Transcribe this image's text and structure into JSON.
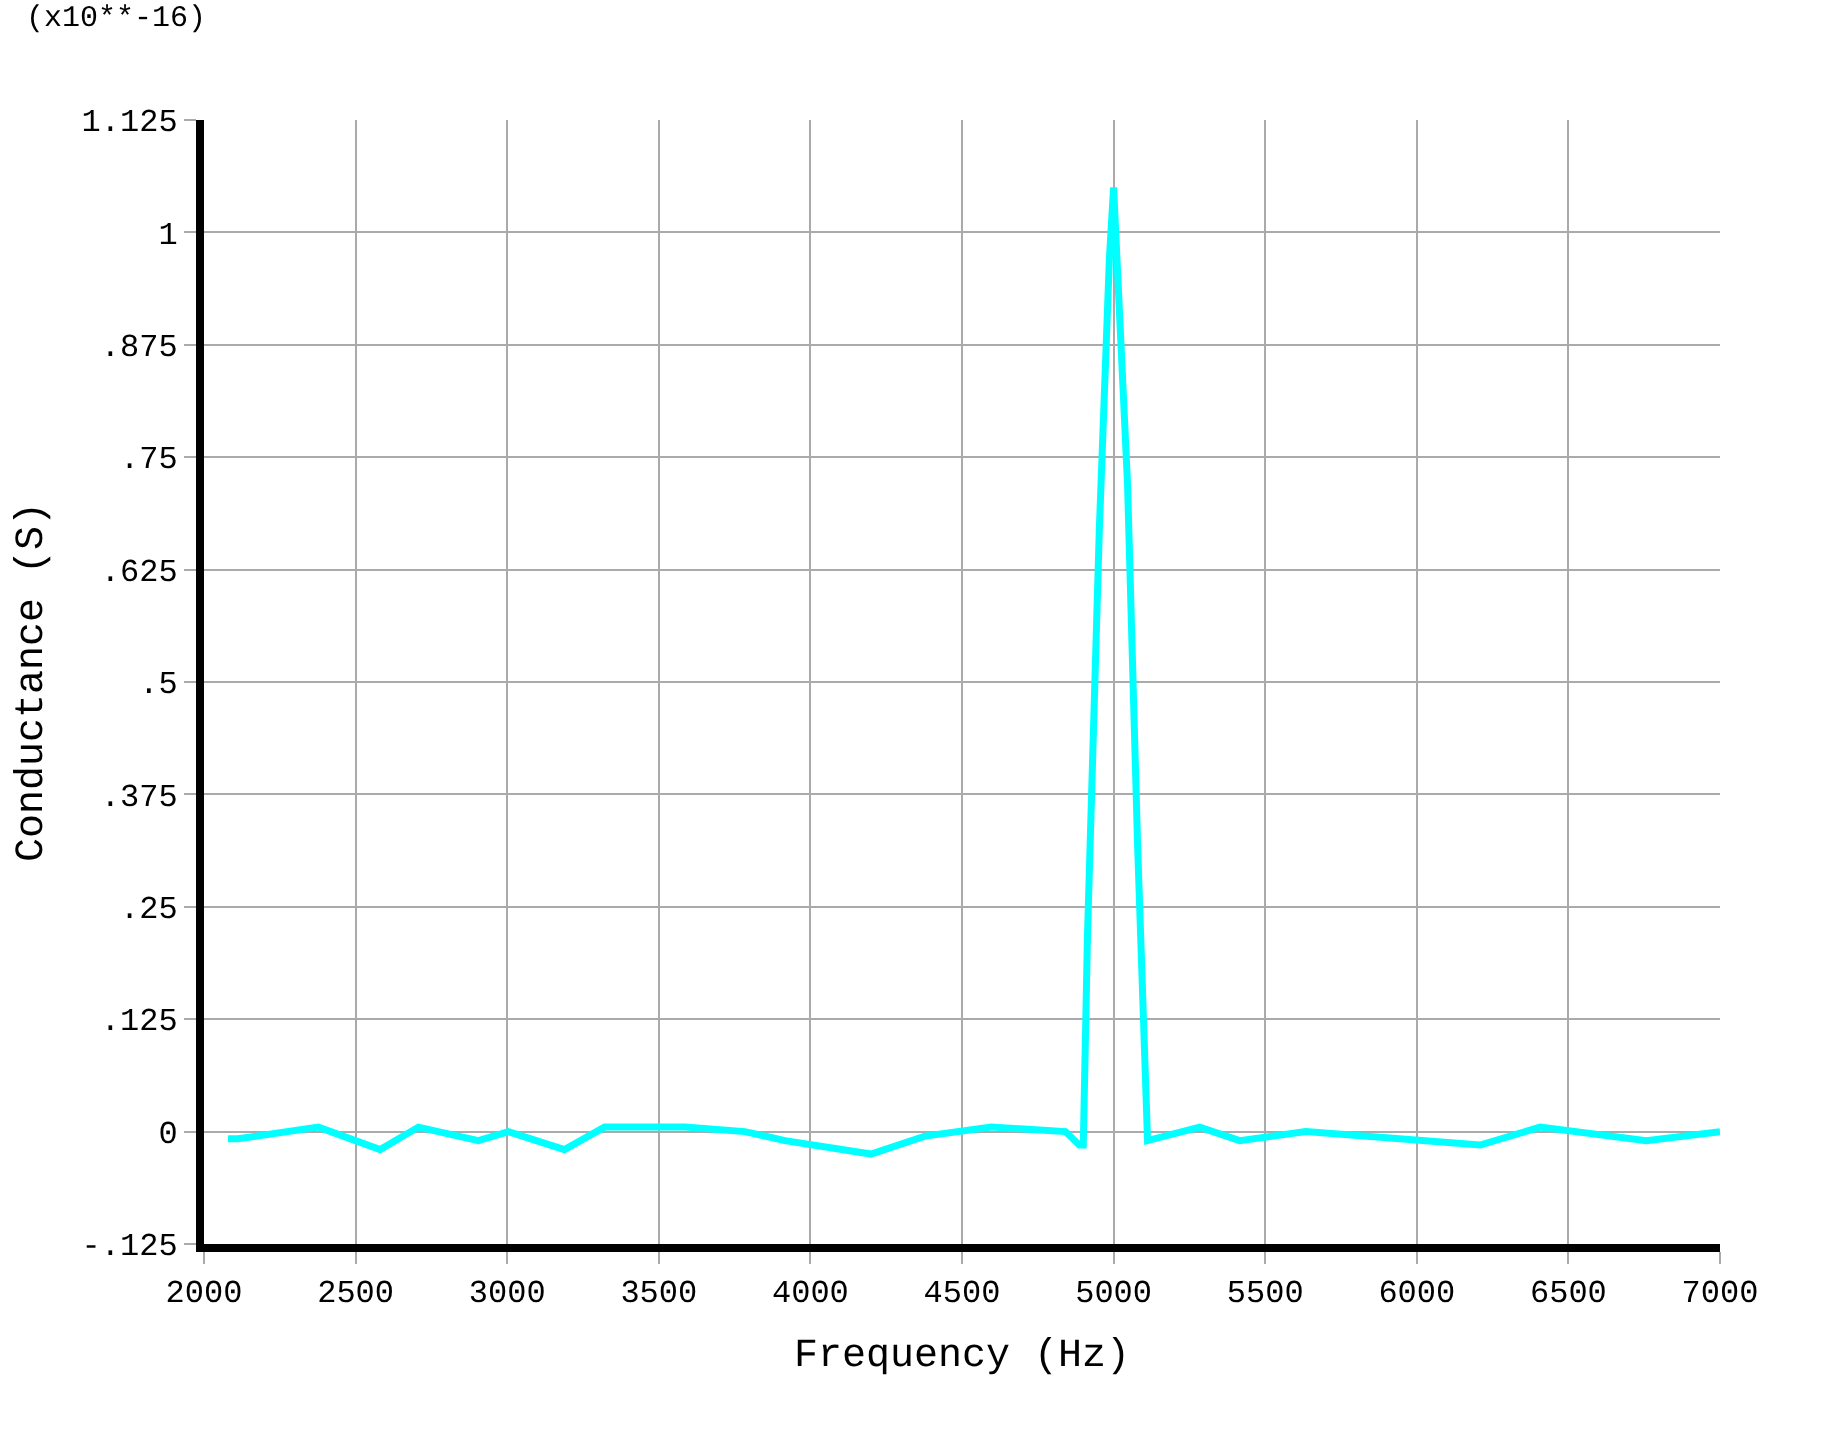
{
  "chart_data": {
    "type": "line",
    "xlabel": "Frequency (Hz)",
    "ylabel": "Conductance (S)",
    "annotations": [
      "(x10**-16)"
    ],
    "series": [
      {
        "color": "#00ffff",
        "x": [
          2079,
          2112,
          2377,
          2581,
          2707,
          2905,
          3004,
          3189,
          3321,
          3586,
          3784,
          3916,
          4200,
          4378,
          4597,
          4841,
          4887,
          4900,
          4914,
          4953,
          4986,
          5000,
          5046,
          5079,
          5112,
          5284,
          5416,
          5634,
          6209,
          6407,
          6757,
          7000
        ],
        "values": [
          -0.008,
          -0.008,
          0.005,
          -0.02,
          0.005,
          -0.01,
          0,
          -0.02,
          0.005,
          0.005,
          0,
          -0.01,
          -0.025,
          -0.005,
          0.005,
          0,
          -0.015,
          -0.015,
          0.22,
          0.67,
          0.97,
          1.05,
          0.72,
          0.32,
          -0.01,
          0.005,
          -0.01,
          0,
          -0.015,
          0.005,
          -0.01,
          0
        ]
      }
    ],
    "xlim": [
      2000,
      7000
    ],
    "xticks": [
      2000,
      2500,
      3000,
      3500,
      4000,
      4500,
      5000,
      5500,
      6000,
      6500,
      7000
    ],
    "ylim": [
      -0.125,
      1.125
    ],
    "yticks": [
      {
        "value": -0.125,
        "label": "-.125"
      },
      0,
      {
        "value": 0.125,
        "label": ".125"
      },
      {
        "value": 0.25,
        "label": ".25"
      },
      {
        "value": 0.375,
        "label": ".375"
      },
      {
        "value": 0.5,
        "label": ".5"
      },
      {
        "value": 0.625,
        "label": ".625"
      },
      {
        "value": 0.75,
        "label": ".75"
      },
      {
        "value": 0.875,
        "label": ".875"
      },
      1,
      {
        "value": 1.125,
        "label": "1.125"
      }
    ],
    "grid": true,
    "marker": "none",
    "line_style": "solid"
  }
}
